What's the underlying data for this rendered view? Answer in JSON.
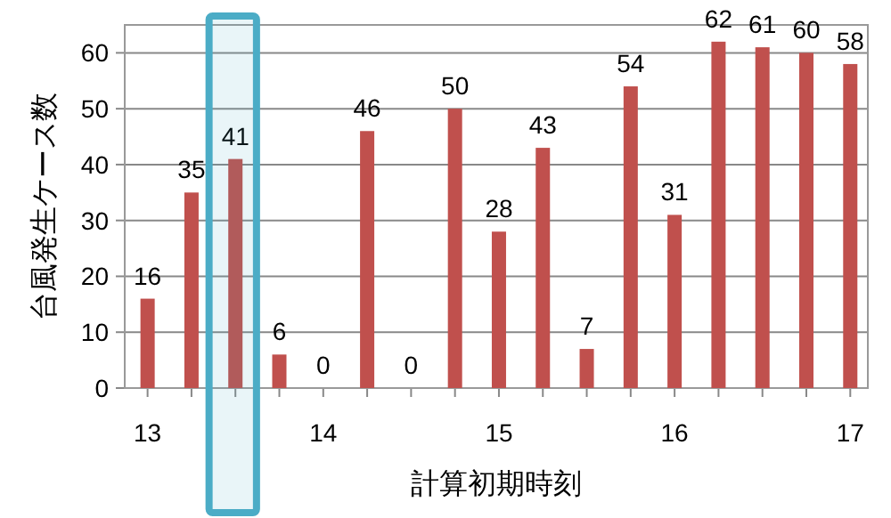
{
  "chart_data": {
    "type": "bar",
    "xlabel": "計算初期時刻",
    "ylabel": "台風発生ケース数",
    "x": [
      13,
      13.25,
      13.5,
      13.75,
      14,
      14.25,
      14.5,
      14.75,
      15,
      15.25,
      15.5,
      15.75,
      16,
      16.25,
      16.5,
      16.75,
      17
    ],
    "values": [
      16,
      35,
      41,
      6,
      0,
      46,
      0,
      50,
      28,
      43,
      7,
      54,
      31,
      62,
      61,
      60,
      58
    ],
    "color": "#c0504d",
    "data_labels": true,
    "xlim": [
      12.87,
      17.1
    ],
    "xticks": [
      13,
      {
        "value": 13.25,
        "label": null
      },
      {
        "value": 13.5,
        "label": null
      },
      {
        "value": 13.75,
        "label": null
      },
      14,
      {
        "value": 14.25,
        "label": null
      },
      {
        "value": 14.5,
        "label": null
      },
      {
        "value": 14.75,
        "label": null
      },
      15,
      {
        "value": 15.25,
        "label": null
      },
      {
        "value": 15.5,
        "label": null
      },
      {
        "value": 15.75,
        "label": null
      },
      16,
      {
        "value": 16.25,
        "label": null
      },
      {
        "value": 16.5,
        "label": null
      },
      {
        "value": 16.75,
        "label": null
      },
      17
    ],
    "ylim": [
      0,
      65
    ],
    "yticks": [
      0,
      10,
      20,
      30,
      40,
      50,
      60
    ],
    "grid": "y",
    "bands": [
      {
        "axis": "x",
        "from": 13.35,
        "to": 13.62,
        "color": "#4bacc6"
      }
    ]
  }
}
